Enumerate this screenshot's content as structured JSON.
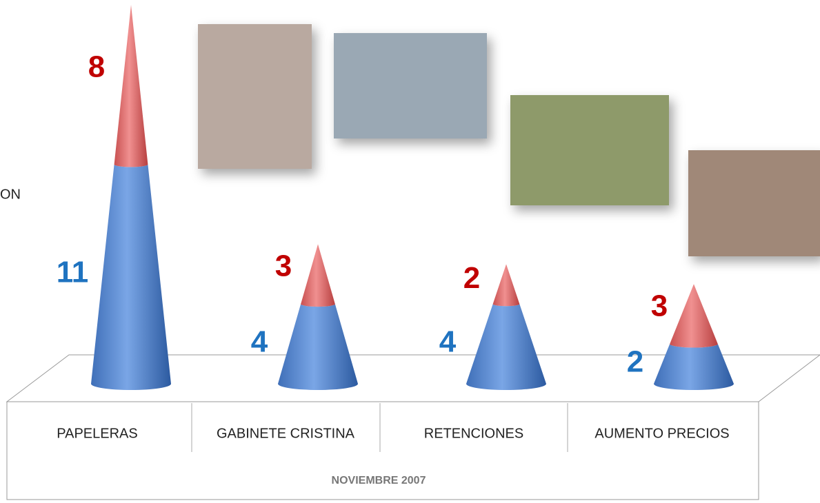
{
  "chart_data": {
    "type": "cone",
    "legend_text": "ON",
    "categories": [
      "PAPELERAS",
      "GABINETE CRISTINA",
      "RETENCIONES",
      "AUMENTO PRECIOS"
    ],
    "group_label": "NOVIEMBRE 2007",
    "series": [
      {
        "color": "#1f73c0",
        "values": [
          11,
          4,
          4,
          2
        ]
      },
      {
        "color": "#c00000",
        "values": [
          8,
          3,
          2,
          3
        ]
      }
    ]
  }
}
